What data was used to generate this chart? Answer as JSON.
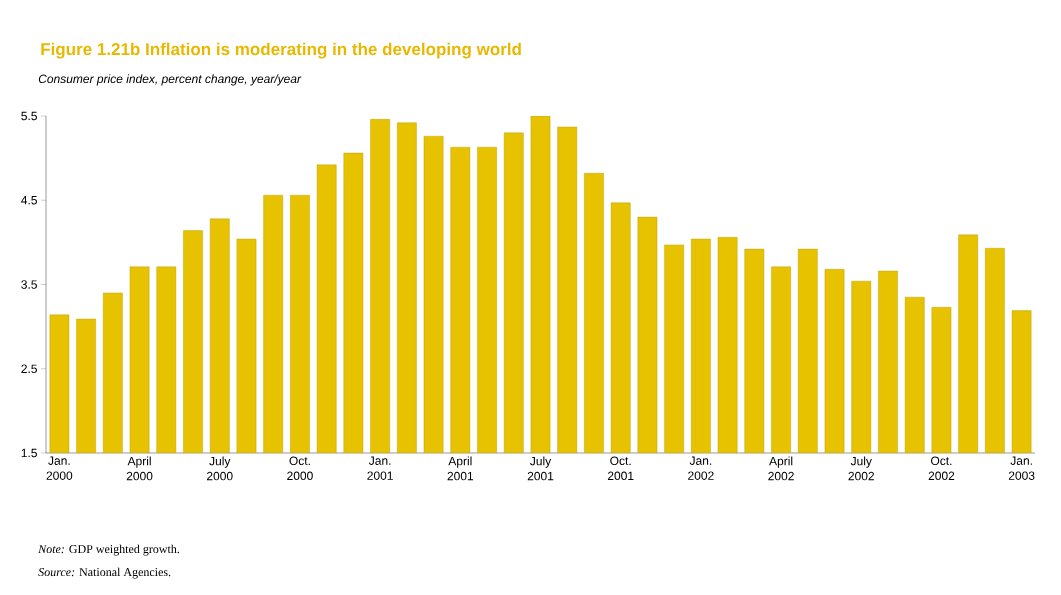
{
  "chart_data": {
    "type": "bar",
    "title": "Figure 1.21b  Inflation is moderating in the developing world",
    "subtitle": "Consumer price index, percent change, year/year",
    "categories": [
      "Jan. 2000",
      null,
      null,
      "April 2000",
      null,
      null,
      "July 2000",
      null,
      null,
      "Oct. 2000",
      null,
      null,
      "Jan. 2001",
      null,
      null,
      "April 2001",
      null,
      null,
      "July 2001",
      null,
      null,
      "Oct. 2001",
      null,
      null,
      "Jan. 2002",
      null,
      null,
      "April 2002",
      null,
      null,
      "July 2002",
      null,
      null,
      "Oct. 2002",
      null,
      null,
      "Jan. 2003"
    ],
    "values": [
      3.14,
      3.09,
      3.4,
      3.71,
      3.71,
      4.14,
      4.28,
      4.04,
      4.56,
      4.56,
      4.92,
      5.06,
      5.46,
      5.42,
      5.26,
      5.13,
      5.13,
      5.3,
      5.5,
      5.37,
      4.82,
      4.47,
      4.3,
      3.97,
      4.04,
      4.06,
      3.92,
      3.71,
      3.92,
      3.68,
      3.54,
      3.66,
      3.35,
      3.23,
      4.09,
      3.93,
      3.19
    ],
    "color": "#e6c200",
    "ylim": [
      1.5,
      5.5
    ],
    "yticks": [
      1.5,
      2.5,
      3.5,
      4.5,
      5.5
    ],
    "annotations": [
      "*Note:* GDP weighted growth.",
      "*Source:* National Agencies."
    ]
  }
}
